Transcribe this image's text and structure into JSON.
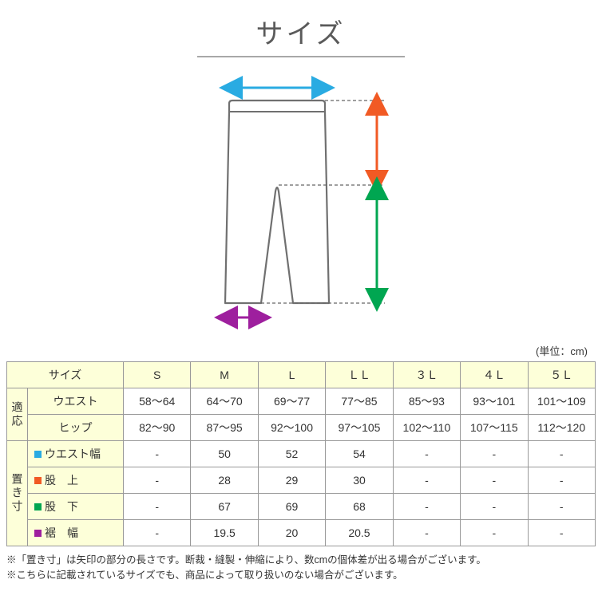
{
  "title": "サイズ",
  "unit_label": "(単位：cm)",
  "diagram": {
    "pants_stroke": "#707070",
    "waist_arrow_color": "#29abe2",
    "rise_arrow_color": "#f15a24",
    "inseam_arrow_color": "#00a651",
    "hem_arrow_color": "#9e1f9e",
    "dash_color": "#666666"
  },
  "table": {
    "header_bg": "#fdffd9",
    "border_color": "#999999",
    "size_label": "サイズ",
    "sizes": [
      "S",
      "M",
      "L",
      "ＬＬ",
      "３Ｌ",
      "４Ｌ",
      "５Ｌ"
    ],
    "fit_group_label": "適応",
    "fit_rows": [
      {
        "label": "ウエスト",
        "values": [
          "58～64",
          "64～70",
          "69～77",
          "77～85",
          "85～93",
          "93～101",
          "101～109"
        ]
      },
      {
        "label": "ヒップ",
        "values": [
          "82～90",
          "87～95",
          "92～100",
          "97～105",
          "102～110",
          "107～115",
          "112～120"
        ]
      }
    ],
    "flat_group_label": "置き寸",
    "flat_rows": [
      {
        "marker_color": "#29abe2",
        "label": "ウエスト幅",
        "values": [
          "-",
          "50",
          "52",
          "54",
          "-",
          "-",
          "-"
        ]
      },
      {
        "marker_color": "#f15a24",
        "label": "股　上",
        "values": [
          "-",
          "28",
          "29",
          "30",
          "-",
          "-",
          "-"
        ]
      },
      {
        "marker_color": "#00a651",
        "label": "股　下",
        "values": [
          "-",
          "67",
          "69",
          "68",
          "-",
          "-",
          "-"
        ]
      },
      {
        "marker_color": "#9e1f9e",
        "label": "裾　幅",
        "values": [
          "-",
          "19.5",
          "20",
          "20.5",
          "-",
          "-",
          "-"
        ]
      }
    ]
  },
  "notes": [
    "※「置き寸」は矢印の部分の長さです。断裁・縫製・伸縮により、数cmの個体差が出る場合がございます。",
    "※こちらに記載されているサイズでも、商品によって取り扱いのない場合がございます。"
  ]
}
